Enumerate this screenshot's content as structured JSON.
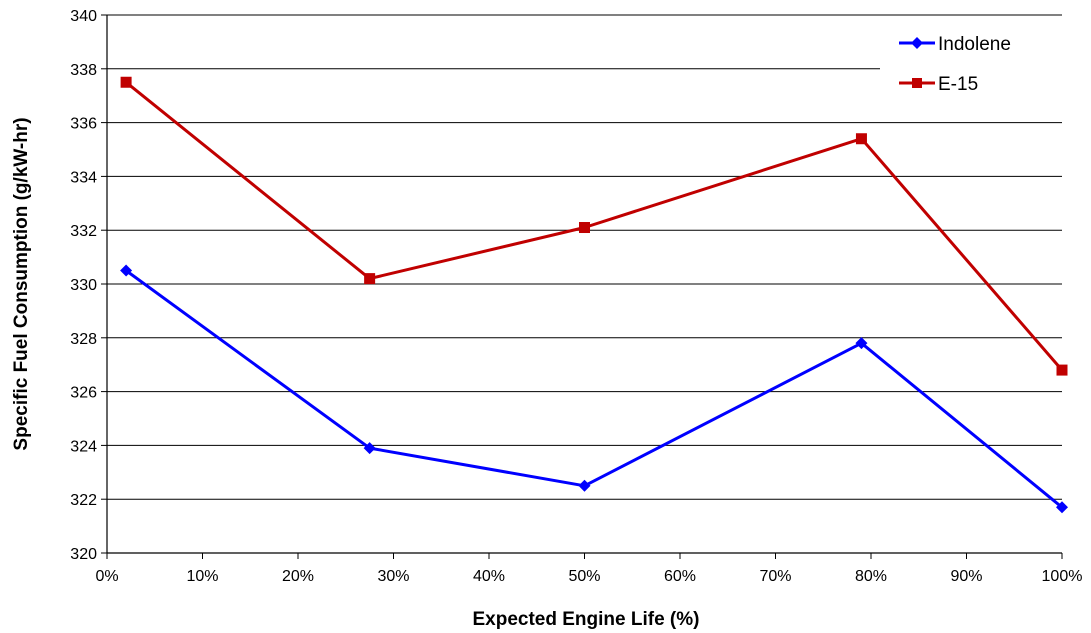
{
  "chart_data": {
    "type": "line",
    "title": "",
    "xlabel": "Expected Engine Life (%)",
    "ylabel": "Specific Fuel Consumption (g/kW-hr)",
    "xlim": [
      0,
      100
    ],
    "ylim": [
      320,
      340
    ],
    "x_ticks": [
      "0%",
      "10%",
      "20%",
      "30%",
      "40%",
      "50%",
      "60%",
      "70%",
      "80%",
      "90%",
      "100%"
    ],
    "y_ticks": [
      "320",
      "322",
      "324",
      "326",
      "328",
      "330",
      "332",
      "334",
      "336",
      "338",
      "340"
    ],
    "grid": "horizontal",
    "legend_position": "top-right",
    "series": [
      {
        "name": "Indolene",
        "color": "#0000FF",
        "marker": "diamond",
        "x": [
          2,
          27.5,
          50,
          79,
          100
        ],
        "y": [
          330.5,
          323.9,
          322.5,
          327.8,
          321.7
        ]
      },
      {
        "name": "E-15",
        "color": "#C00000",
        "marker": "square",
        "x": [
          2,
          27.5,
          50,
          79,
          100
        ],
        "y": [
          337.5,
          330.2,
          332.1,
          335.4,
          326.8
        ]
      }
    ]
  }
}
